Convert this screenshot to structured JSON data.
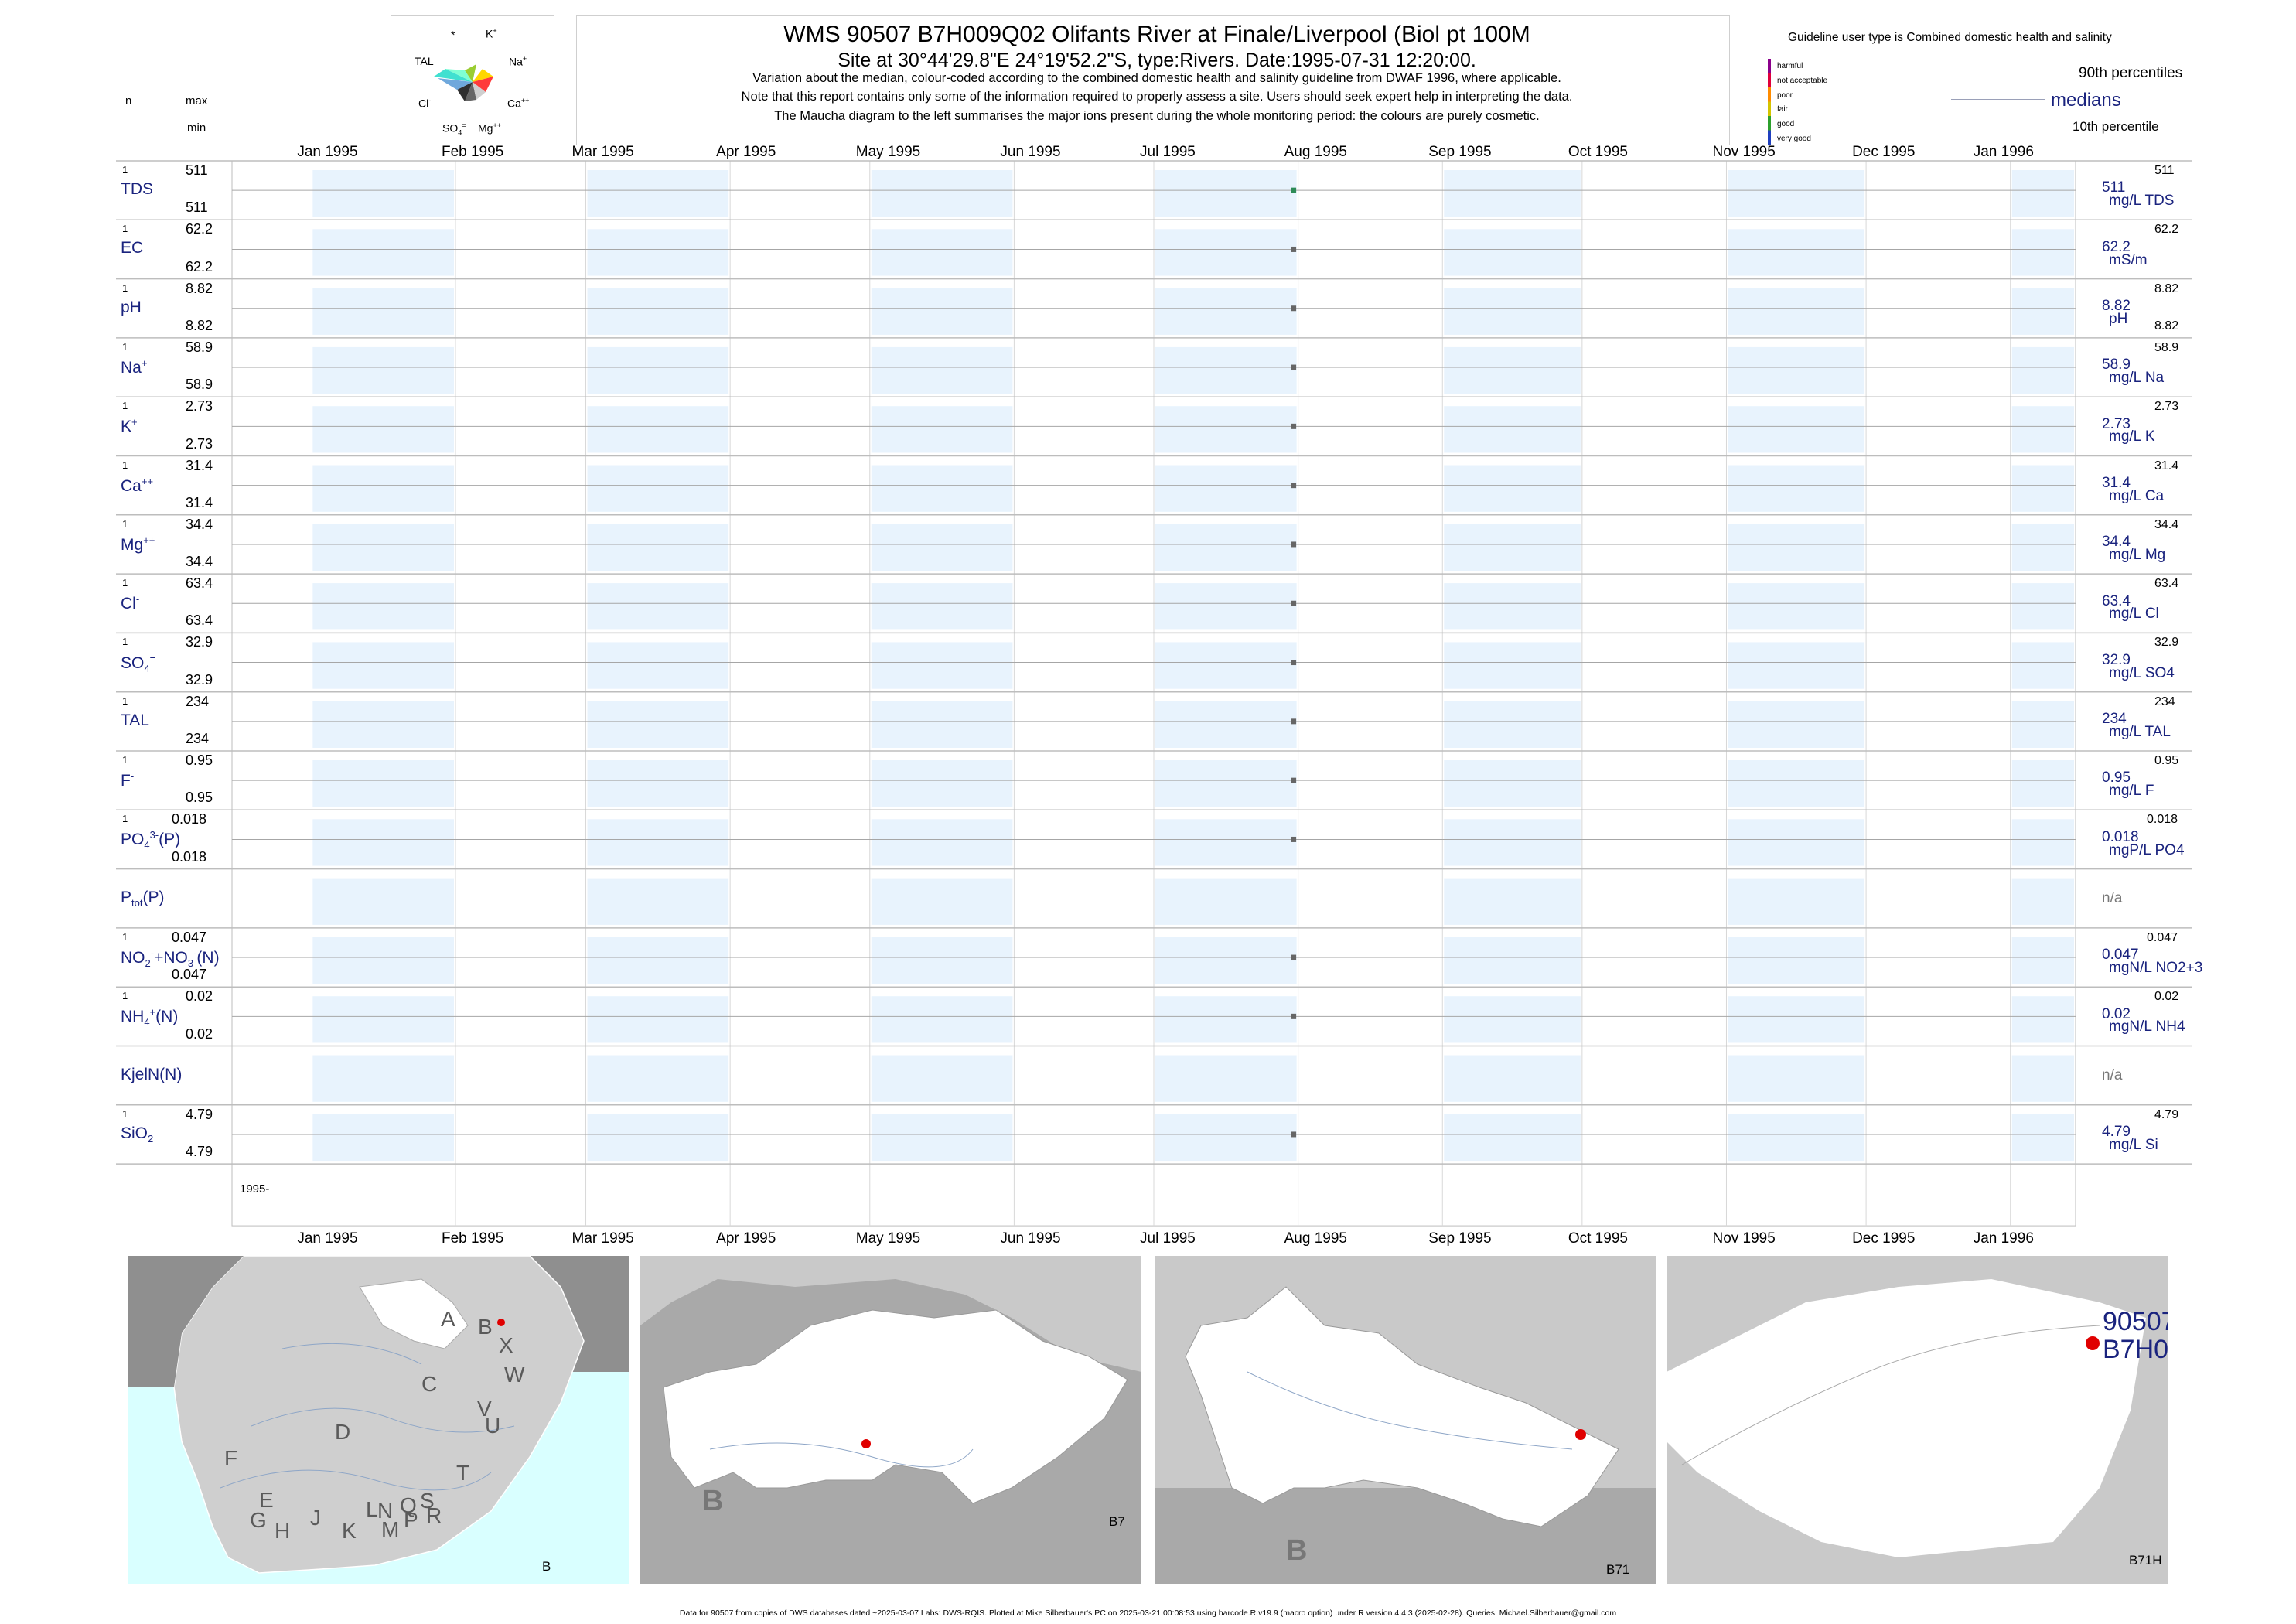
{
  "header": {
    "title": "WMS 90507 B7H009Q02 Olifants River at Finale/Liverpool (Biol pt 100M",
    "subtitle": "Site at 30°44'29.8\"E 24°19'52.2\"S, type:Rivers. Date:1995-07-31 12:20:00.",
    "note1": "Variation about the median,  colour-coded according to the combined domestic health and salinity guideline from DWAF 1996, where applicable.",
    "note2": "Note that this report contains only some of the information required to properly assess a site. Users should seek expert help in interpreting the data.",
    "note3": "The Maucha diagram to the left summarises the major ions present during the whole monitoring period: the colours are purely cosmetic."
  },
  "left_header": {
    "n": "n",
    "max": "max",
    "min": "min"
  },
  "maucha": {
    "labels": {
      "star": "*",
      "k": "K",
      "k_sup": "+",
      "tal": "TAL",
      "na": "Na",
      "na_sup": "+",
      "cl": "Cl",
      "cl_sup": "-",
      "ca": "Ca",
      "ca_sup": "++",
      "so4": "SO",
      "so4_sub": "4",
      "so4_sup": "=",
      "mg": "Mg",
      "mg_sup": "++"
    }
  },
  "legend": {
    "guideline_text": "Guideline user type is Combined domestic health and salinity",
    "classes": [
      "harmful",
      "not acceptable",
      "poor",
      "fair",
      "good",
      "very good"
    ],
    "class_colors": [
      "#8b008b",
      "#e0003c",
      "#ff8c00",
      "#d4c400",
      "#2ca02c",
      "#1f3fbf"
    ],
    "p90": "90th percentiles",
    "medians": "medians",
    "p10": "10th percentile"
  },
  "footer": "Data for 90507 from copies of DWS databases dated ~2025-03-07 Labs: DWS-RQIS. Plotted at Mike Silberbauer's PC on 2025-03-21 00:08:53 using barcode.R v19.9 (macro option) under R version 4.4.3 (2025-02-28). Queries: Michael.Silberbauer@gmail.com",
  "chart_data": {
    "type": "scatter",
    "x_axis": {
      "months": [
        "Jan 1995",
        "Feb 1995",
        "Mar 1995",
        "Apr 1995",
        "May 1995",
        "Jun 1995",
        "Jul 1995",
        "Aug 1995",
        "Sep 1995",
        "Oct 1995",
        "Nov 1995",
        "Dec 1995",
        "Jan 1996"
      ],
      "range": [
        "1994-12-15",
        "1996-01-15"
      ],
      "year_label": "1995-"
    },
    "sample_date": "1995-07-31",
    "series": [
      {
        "name": "TDS",
        "n": "1",
        "max": "511",
        "min": "511",
        "median": "511",
        "unit": "mg/L TDS",
        "p90": "511",
        "p10": "",
        "value": 511,
        "color": "#2e8b57"
      },
      {
        "name": "EC",
        "n": "1",
        "max": "62.2",
        "min": "62.2",
        "median": "62.2",
        "unit": "mS/m",
        "p90": "62.2",
        "p10": "",
        "value": 62.2,
        "color": "#666666"
      },
      {
        "name": "pH",
        "n": "1",
        "max": "8.82",
        "min": "8.82",
        "median": "8.82",
        "unit": "pH",
        "p90": "8.82",
        "p10": "8.82",
        "value": 8.82,
        "color": "#666666"
      },
      {
        "name": "Na",
        "sup": "+",
        "n": "1",
        "max": "58.9",
        "min": "58.9",
        "median": "58.9",
        "unit": "mg/L Na",
        "p90": "58.9",
        "p10": "",
        "value": 58.9,
        "color": "#666666"
      },
      {
        "name": "K",
        "sup": "+",
        "n": "1",
        "max": "2.73",
        "min": "2.73",
        "median": "2.73",
        "unit": "mg/L K",
        "p90": "2.73",
        "p10": "",
        "value": 2.73,
        "color": "#666666"
      },
      {
        "name": "Ca",
        "sup": "++",
        "n": "1",
        "max": "31.4",
        "min": "31.4",
        "median": "31.4",
        "unit": "mg/L Ca",
        "p90": "31.4",
        "p10": "",
        "value": 31.4,
        "color": "#666666"
      },
      {
        "name": "Mg",
        "sup": "++",
        "n": "1",
        "max": "34.4",
        "min": "34.4",
        "median": "34.4",
        "unit": "mg/L Mg",
        "p90": "34.4",
        "p10": "",
        "value": 34.4,
        "color": "#666666"
      },
      {
        "name": "Cl",
        "sup": "-",
        "n": "1",
        "max": "63.4",
        "min": "63.4",
        "median": "63.4",
        "unit": "mg/L Cl",
        "p90": "63.4",
        "p10": "",
        "value": 63.4,
        "color": "#666666"
      },
      {
        "name": "SO",
        "sub": "4",
        "sup": "=",
        "n": "1",
        "max": "32.9",
        "min": "32.9",
        "median": "32.9",
        "unit": "mg/L SO4",
        "p90": "32.9",
        "p10": "",
        "value": 32.9,
        "color": "#666666"
      },
      {
        "name": "TAL",
        "n": "1",
        "max": "234",
        "min": "234",
        "median": "234",
        "unit": "mg/L TAL",
        "p90": "234",
        "p10": "",
        "value": 234,
        "color": "#666666"
      },
      {
        "name": "F",
        "sup": "-",
        "n": "1",
        "max": "0.95",
        "min": "0.95",
        "median": "0.95",
        "unit": "mg/L F",
        "p90": "0.95",
        "p10": "",
        "value": 0.95,
        "color": "#666666"
      },
      {
        "name": "PO",
        "sub": "4",
        "sup": "3-",
        "suffix": "(P)",
        "n": "1",
        "max": "0.018",
        "min": "0.018",
        "median": "0.018",
        "unit": "mgP/L PO4",
        "p90": "0.018",
        "p10": "",
        "value": 0.018,
        "color": "#666666"
      },
      {
        "name": "P",
        "sub": "tot",
        "suffix": "(P)",
        "n": "",
        "max": "",
        "min": "",
        "median": "n/a",
        "unit": "",
        "p90": "",
        "p10": "",
        "value": null,
        "color": "#666666"
      },
      {
        "name": "NO",
        "sub": "2",
        "sup": "-",
        "suffix": "+NO",
        "sub2": "3",
        "sup2": "-",
        "suffix2": "(N)",
        "n": "1",
        "max": "0.047",
        "min": "0.047",
        "median": "0.047",
        "unit": "mgN/L NO2+3",
        "p90": "0.047",
        "p10": "",
        "value": 0.047,
        "color": "#666666"
      },
      {
        "name": "NH",
        "sub": "4",
        "sup": "+",
        "suffix": "(N)",
        "n": "1",
        "max": "0.02",
        "min": "0.02",
        "median": "0.02",
        "unit": "mgN/L NH4",
        "p90": "0.02",
        "p10": "",
        "value": 0.02,
        "color": "#666666"
      },
      {
        "name": "KjelN(N)",
        "n": "",
        "max": "",
        "min": "",
        "median": "n/a",
        "unit": "",
        "p90": "",
        "p10": "",
        "value": null,
        "color": "#666666"
      },
      {
        "name": "SiO",
        "sub": "2",
        "n": "1",
        "max": "4.79",
        "min": "4.79",
        "median": "4.79",
        "unit": "mg/L Si",
        "p90": "4.79",
        "p10": "",
        "value": 4.79,
        "color": "#666666"
      }
    ]
  },
  "maps": {
    "map1": {
      "regions": [
        "A",
        "B",
        "X",
        "W",
        "C",
        "V",
        "D",
        "U",
        "T",
        "F",
        "E",
        "S",
        "R",
        "Q",
        "N",
        "L",
        "P",
        "M",
        "J",
        "K",
        "G",
        "H"
      ],
      "corner": "B"
    },
    "map2": {
      "big": "B",
      "corner": "B7"
    },
    "map3": {
      "big": "B",
      "corner": "B71"
    },
    "map4": {
      "site_label1": "90507",
      "site_label2": "B7H0",
      "corner": "B71H"
    }
  }
}
